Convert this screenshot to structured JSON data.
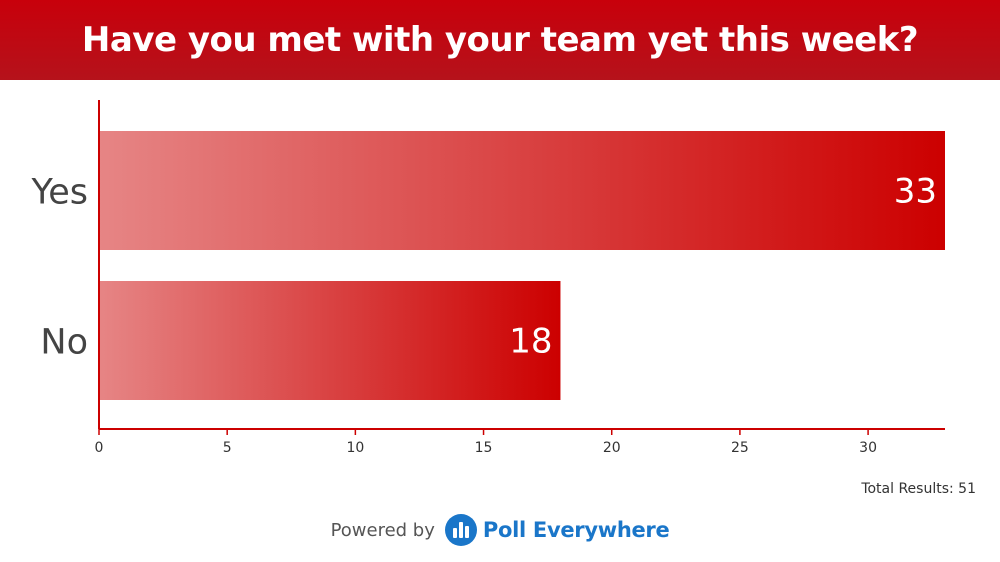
{
  "header": {
    "title": "Have you met with your team yet this week?"
  },
  "chart_data": {
    "type": "bar",
    "orientation": "horizontal",
    "categories": [
      "Yes",
      "No"
    ],
    "values": [
      33,
      18
    ],
    "xlim": [
      0,
      33
    ],
    "xticks": [
      0,
      5,
      10,
      15,
      20,
      25,
      30
    ],
    "grid": false,
    "bar_color": "#cc0000",
    "bar_color_light": "#e68585"
  },
  "footer": {
    "total_label": "Total Results: 51",
    "powered_label": "Powered by",
    "brand": "Poll Everywhere",
    "brand_color": "#1a76c9"
  }
}
